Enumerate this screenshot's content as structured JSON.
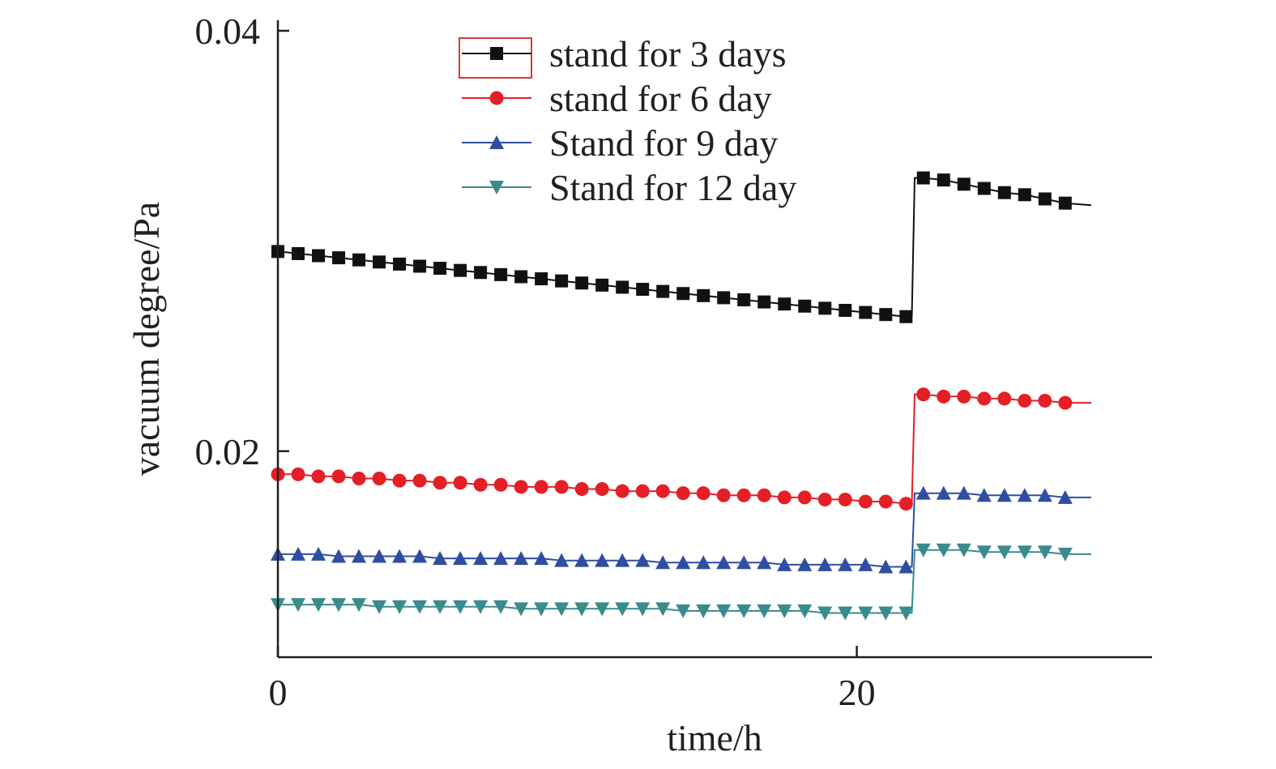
{
  "chart_data": {
    "type": "line",
    "title": "",
    "xlabel": "time/h",
    "ylabel": "vacuum degree/Pa",
    "xlim": [
      0,
      30.2
    ],
    "ylim": [
      0.0102,
      0.0405
    ],
    "x_ticks": [
      {
        "value": 0,
        "label": "0"
      },
      {
        "value": 20,
        "label": "20"
      }
    ],
    "y_ticks": [
      {
        "value": 0.02,
        "label": "0.02"
      },
      {
        "value": 0.04,
        "label": "0.04"
      }
    ],
    "grid": false,
    "legend_position": "top-center",
    "step_time": 21.9,
    "line_end_time": 28.1,
    "series": [
      {
        "name": "stand for 3 days",
        "marker": "square",
        "color": "#111111",
        "x": [
          0.0,
          0.7,
          1.4,
          2.1,
          2.8,
          3.5,
          4.2,
          4.9,
          5.6,
          6.3,
          7.0,
          7.7,
          8.4,
          9.1,
          9.8,
          10.5,
          11.2,
          11.9,
          12.6,
          13.3,
          14.0,
          14.7,
          15.4,
          16.1,
          16.8,
          17.5,
          18.2,
          18.9,
          19.6,
          20.3,
          21.0,
          21.7,
          22.3,
          23.0,
          23.7,
          24.4,
          25.1,
          25.8,
          26.5,
          27.2
        ],
        "y": [
          0.0295,
          0.0294,
          0.0293,
          0.0292,
          0.0291,
          0.029,
          0.0289,
          0.0288,
          0.0287,
          0.0286,
          0.0285,
          0.0284,
          0.0283,
          0.0282,
          0.0281,
          0.028,
          0.0279,
          0.0278,
          0.0277,
          0.0276,
          0.0275,
          0.0274,
          0.0273,
          0.0272,
          0.0271,
          0.027,
          0.0269,
          0.0268,
          0.0267,
          0.0266,
          0.0265,
          0.0264,
          0.033,
          0.0329,
          0.0327,
          0.0325,
          0.0323,
          0.0322,
          0.032,
          0.0318
        ],
        "end_value_before_step": 0.0264,
        "end_value": 0.0317
      },
      {
        "name": "stand for 6 day",
        "marker": "circle",
        "color": "#e41f26",
        "x": [
          0.0,
          0.7,
          1.4,
          2.1,
          2.8,
          3.5,
          4.2,
          4.9,
          5.6,
          6.3,
          7.0,
          7.7,
          8.4,
          9.1,
          9.8,
          10.5,
          11.2,
          11.9,
          12.6,
          13.3,
          14.0,
          14.7,
          15.4,
          16.1,
          16.8,
          17.5,
          18.2,
          18.9,
          19.6,
          20.3,
          21.0,
          21.7,
          22.3,
          23.0,
          23.7,
          24.4,
          25.1,
          25.8,
          26.5,
          27.2
        ],
        "y": [
          0.0189,
          0.0189,
          0.0188,
          0.0188,
          0.0187,
          0.0187,
          0.0186,
          0.0186,
          0.0185,
          0.0185,
          0.0184,
          0.0184,
          0.0183,
          0.0183,
          0.0183,
          0.0182,
          0.0182,
          0.0181,
          0.0181,
          0.0181,
          0.018,
          0.018,
          0.0179,
          0.0179,
          0.0179,
          0.0178,
          0.0178,
          0.0177,
          0.0177,
          0.0176,
          0.0176,
          0.0175,
          0.0227,
          0.0226,
          0.0226,
          0.0225,
          0.0225,
          0.0224,
          0.0224,
          0.0223
        ],
        "end_value_before_step": 0.0175,
        "end_value": 0.0223
      },
      {
        "name": "Stand for 9 day",
        "marker": "triangle-up",
        "color": "#2f4ea2",
        "x": [
          0.0,
          0.7,
          1.4,
          2.1,
          2.8,
          3.5,
          4.2,
          4.9,
          5.6,
          6.3,
          7.0,
          7.7,
          8.4,
          9.1,
          9.8,
          10.5,
          11.2,
          11.9,
          12.6,
          13.3,
          14.0,
          14.7,
          15.4,
          16.1,
          16.8,
          17.5,
          18.2,
          18.9,
          19.6,
          20.3,
          21.0,
          21.7,
          22.3,
          23.0,
          23.7,
          24.4,
          25.1,
          25.8,
          26.5,
          27.2
        ],
        "y": [
          0.0151,
          0.0151,
          0.0151,
          0.015,
          0.015,
          0.015,
          0.015,
          0.015,
          0.0149,
          0.0149,
          0.0149,
          0.0149,
          0.0149,
          0.0149,
          0.0148,
          0.0148,
          0.0148,
          0.0148,
          0.0148,
          0.0147,
          0.0147,
          0.0147,
          0.0147,
          0.0147,
          0.0147,
          0.0146,
          0.0146,
          0.0146,
          0.0146,
          0.0146,
          0.0145,
          0.0145,
          0.018,
          0.018,
          0.018,
          0.0179,
          0.0179,
          0.0179,
          0.0179,
          0.0178
        ],
        "end_value_before_step": 0.0145,
        "end_value": 0.0178
      },
      {
        "name": "Stand for 12 day",
        "marker": "triangle-down",
        "color": "#3a8b8c",
        "x": [
          0.0,
          0.7,
          1.4,
          2.1,
          2.8,
          3.5,
          4.2,
          4.9,
          5.6,
          6.3,
          7.0,
          7.7,
          8.4,
          9.1,
          9.8,
          10.5,
          11.2,
          11.9,
          12.6,
          13.3,
          14.0,
          14.7,
          15.4,
          16.1,
          16.8,
          17.5,
          18.2,
          18.9,
          19.6,
          20.3,
          21.0,
          21.7,
          22.3,
          23.0,
          23.7,
          24.4,
          25.1,
          25.8,
          26.5,
          27.2
        ],
        "y": [
          0.0127,
          0.0127,
          0.0127,
          0.0127,
          0.0127,
          0.0126,
          0.0126,
          0.0126,
          0.0126,
          0.0126,
          0.0126,
          0.0126,
          0.0125,
          0.0125,
          0.0125,
          0.0125,
          0.0125,
          0.0125,
          0.0125,
          0.0125,
          0.0124,
          0.0124,
          0.0124,
          0.0124,
          0.0124,
          0.0124,
          0.0124,
          0.0123,
          0.0123,
          0.0123,
          0.0123,
          0.0123,
          0.0153,
          0.0153,
          0.0153,
          0.0152,
          0.0152,
          0.0152,
          0.0152,
          0.0151
        ],
        "end_value_before_step": 0.0123,
        "end_value": 0.0151
      }
    ]
  }
}
